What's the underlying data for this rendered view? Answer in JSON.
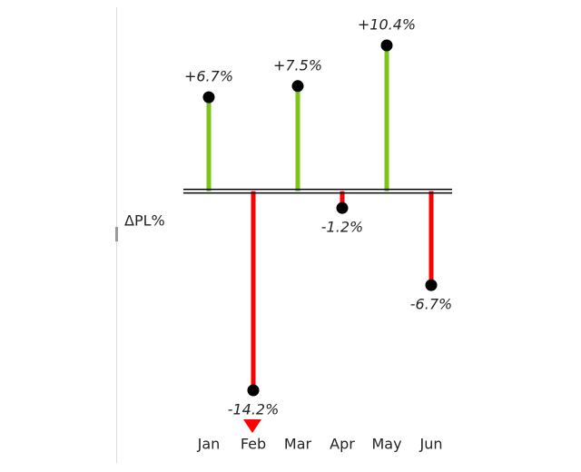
{
  "chart_data": {
    "type": "lollipop",
    "axis_label": "ΔPL%",
    "categories": [
      "Jan",
      "Feb",
      "Mar",
      "Apr",
      "May",
      "Jun"
    ],
    "values": [
      6.7,
      -14.2,
      7.5,
      -1.2,
      10.4,
      -6.7
    ],
    "value_labels": [
      "+6.7%",
      "-14.2%",
      "+7.5%",
      "-1.2%",
      "+10.4%",
      "-6.7%"
    ],
    "positive_color": "#7cc417",
    "negative_color": "#ff0000"
  }
}
